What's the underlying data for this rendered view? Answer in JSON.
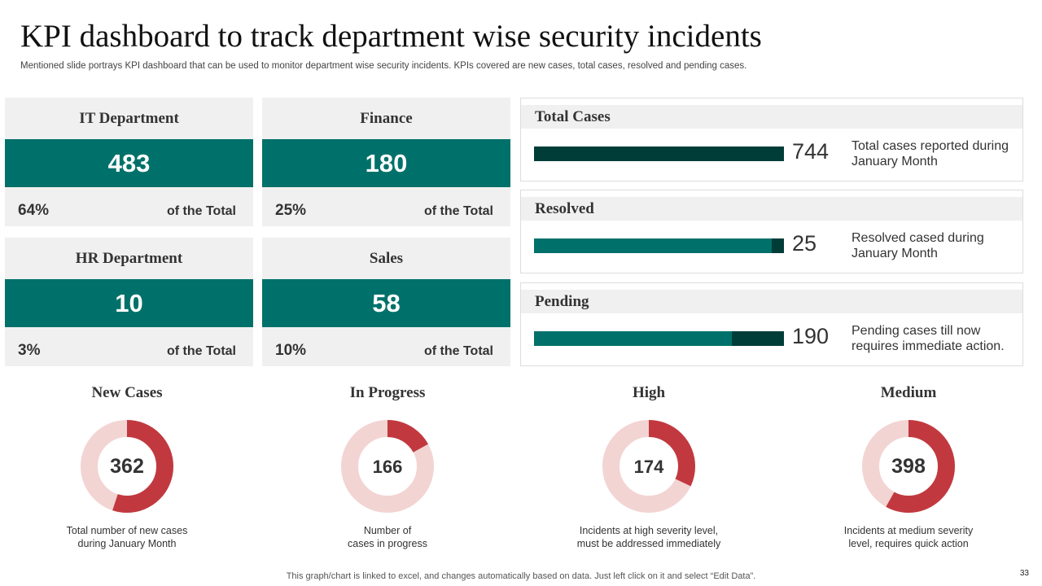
{
  "title": "KPI dashboard to track department wise security incidents",
  "subtitle": "Mentioned slide portrays KPI dashboard that can be used to monitor department wise security incidents. KPIs covered are new cases, total cases, resolved and pending cases.",
  "departments": [
    {
      "name": "IT Department",
      "value": "483",
      "percent": "64%",
      "suffix": "of the Total"
    },
    {
      "name": "Finance",
      "value": "180",
      "percent": "25%",
      "suffix": "of the Total"
    },
    {
      "name": "HR Department",
      "value": "10",
      "percent": "3%",
      "suffix": "of the Total"
    },
    {
      "name": "Sales",
      "value": "58",
      "percent": "10%",
      "suffix": "of the Total"
    }
  ],
  "cases": [
    {
      "title": "Total Cases",
      "value": "744",
      "fill_fraction": 0.0,
      "desc": "Total cases reported during January  Month"
    },
    {
      "title": "Resolved",
      "value": "25",
      "fill_fraction": 0.95,
      "desc": "Resolved cased during January  Month"
    },
    {
      "title": "Pending",
      "value": "190",
      "fill_fraction": 0.79,
      "desc": "Pending cases till now requires immediate action."
    }
  ],
  "colors": {
    "teal": "#00716a",
    "dark_teal": "#003d39",
    "donut_red": "#c1393f",
    "donut_pink": "#f2d4d3",
    "panel_gray": "#f0f0f0"
  },
  "chart_data": [
    {
      "type": "pie",
      "title": "New Cases",
      "label": "362",
      "fraction": 0.55,
      "description": "Total number of new cases\nduring January Month"
    },
    {
      "type": "pie",
      "title": "In Progress",
      "label": "166",
      "fraction": 0.17,
      "description": "Number of\ncases in progress"
    },
    {
      "type": "pie",
      "title": "High",
      "label": "174",
      "fraction": 0.32,
      "description": "Incidents at high severity level,\nmust be addressed immediately"
    },
    {
      "type": "pie",
      "title": "Medium",
      "label": "398",
      "fraction": 0.58,
      "description": "Incidents at medium severity\nlevel,  requires quick action"
    }
  ],
  "footnote": "This graph/chart is linked to excel,  and changes automatically based on data. Just left click on it and select “Edit Data”.",
  "page_number": "33"
}
